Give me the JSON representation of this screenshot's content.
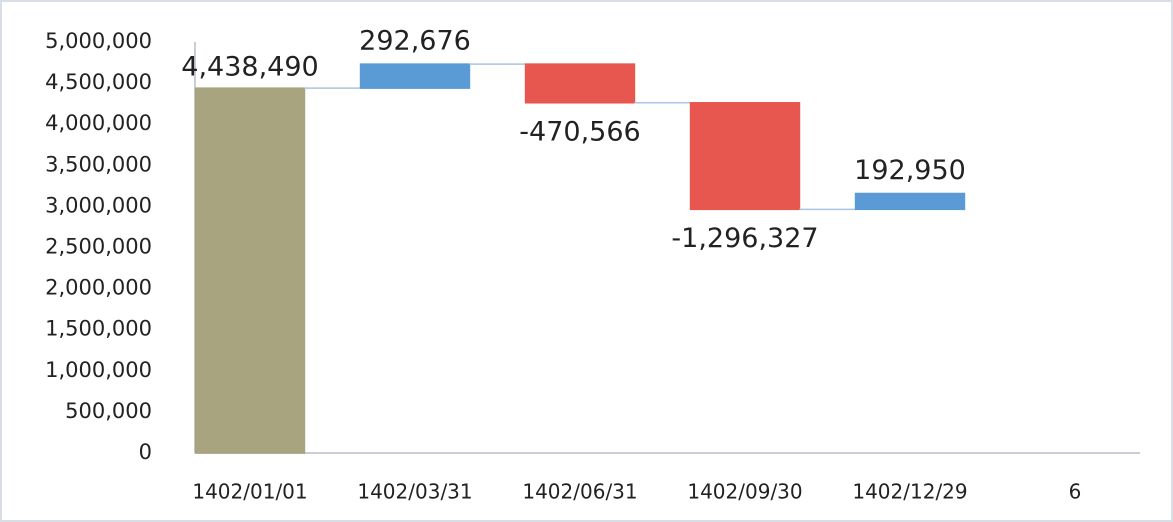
{
  "chart_data": {
    "type": "waterfall",
    "categories": [
      "1402/01/01",
      "1402/03/31",
      "1402/06/31",
      "1402/09/30",
      "1402/12/29",
      "6"
    ],
    "values": [
      4438490,
      292676,
      -470566,
      -1296327,
      192950,
      null
    ],
    "value_labels": [
      "4,438,490",
      "292,676",
      "-470,566",
      "-1,296,327",
      "192,950",
      null
    ],
    "colors": {
      "total": "#a8a47f",
      "increase": "#5b9bd5",
      "decrease": "#e8574f"
    },
    "ylim": [
      0,
      5000000
    ],
    "yticks": [
      0,
      {
        "value": 500000,
        "label": "500,000"
      },
      {
        "value": 1000000,
        "label": "1,000,000"
      },
      {
        "value": 1500000,
        "label": "1,500,000"
      },
      {
        "value": 2000000,
        "label": "2,000,000"
      },
      {
        "value": 2500000,
        "label": "2,500,000"
      },
      {
        "value": 3000000,
        "label": "3,000,000"
      },
      {
        "value": 3500000,
        "label": "3,500,000"
      },
      {
        "value": 4000000,
        "label": "4,000,000"
      },
      {
        "value": 4500000,
        "label": "4,500,000"
      },
      {
        "value": 5000000,
        "label": "5,000,000"
      }
    ],
    "grid": false
  }
}
